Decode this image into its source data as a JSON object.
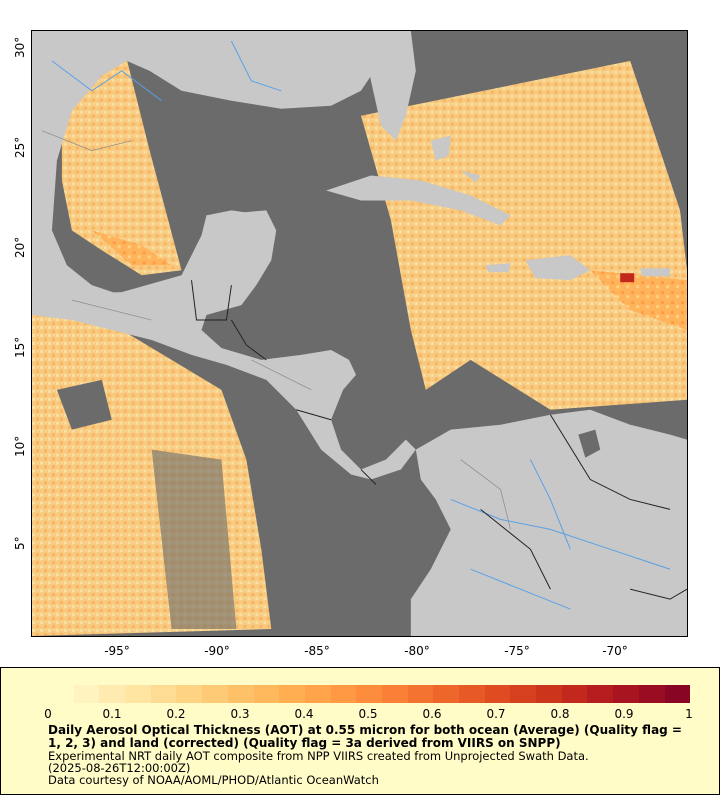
{
  "map": {
    "type": "aerosol-optical-thickness-map",
    "region": "Gulf of Mexico, Caribbean Sea, Central America, northern South America",
    "land_color": "#c8c8c8",
    "ocean_nodata_color": "#6b6b6b",
    "boundary_color": "#222222",
    "river_color": "#5aa0e6",
    "latitude_ticks": [
      "30°",
      "25°",
      "20°",
      "15°",
      "10°",
      "5°"
    ],
    "longitude_ticks": [
      "-95°",
      "-90°",
      "-85°",
      "-80°",
      "-75°",
      "-70°"
    ]
  },
  "colorbar": {
    "tick_labels": [
      "0",
      "0.1",
      "0.2",
      "0.3",
      "0.4",
      "0.5",
      "0.6",
      "0.7",
      "0.8",
      "0.9",
      "1"
    ],
    "colors": [
      "#fffcc8",
      "#fff3c0",
      "#ffebb0",
      "#ffe4a2",
      "#ffdc93",
      "#ffd384",
      "#ffca75",
      "#ffc167",
      "#ffb85c",
      "#ffaf52",
      "#ffa44a",
      "#ff9943",
      "#fd8c3c",
      "#f98036",
      "#f47330",
      "#ee662a",
      "#e75925",
      "#df4c21",
      "#d6401e",
      "#cc341c",
      "#c2281c",
      "#b61d1e",
      "#a81420",
      "#990c22",
      "#880624"
    ]
  },
  "caption": {
    "title": "Daily Aerosol Optical Thickness (AOT) at 0.55 micron for both ocean (Average) (Quality flag = 1, 2, 3) and land (corrected) (Quality flag = 3a derived from VIIRS on SNPP)",
    "line1": "Experimental NRT daily AOT composite from NPP VIIRS created from Unprojected Swath Data.",
    "line2": "(2025-08-26T12:00:00Z)",
    "line3": "Data courtesy of NOAA/AOML/PHOD/Atlantic OceanWatch"
  }
}
